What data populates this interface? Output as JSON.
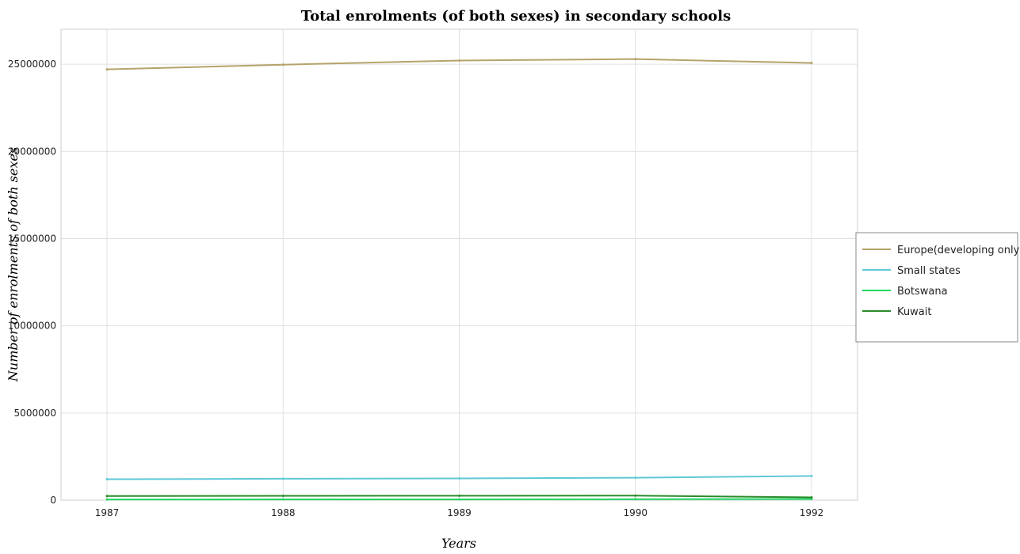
{
  "chart_data": {
    "type": "line",
    "title": "Total enrolments (of both sexes) in secondary schools",
    "xlabel": "Years",
    "ylabel": "Number of enrolments of both sexes",
    "categories": [
      "1987",
      "1988",
      "1989",
      "1990",
      "1992"
    ],
    "ylim": [
      0,
      27000000
    ],
    "yticks": [
      0,
      5000000,
      10000000,
      15000000,
      20000000,
      25000000
    ],
    "ytick_labels": [
      "0",
      "5000000",
      "10000000",
      "15000000",
      "20000000",
      "25000000"
    ],
    "grid": true,
    "legend_position": "right",
    "series": [
      {
        "name": "Europe(developing only)",
        "color": "#b5a36a",
        "values": [
          24700000,
          24970000,
          25210000,
          25290000,
          25070000
        ]
      },
      {
        "name": "Small states",
        "color": "#5fc8d6",
        "values": [
          1200000,
          1230000,
          1250000,
          1290000,
          1390000
        ]
      },
      {
        "name": "Botswana",
        "color": "#1ed760",
        "values": [
          40000,
          43000,
          47000,
          54000,
          70000
        ]
      },
      {
        "name": "Kuwait",
        "color": "#2a8a2a",
        "values": [
          240000,
          250000,
          256000,
          262000,
          160000
        ]
      }
    ]
  }
}
